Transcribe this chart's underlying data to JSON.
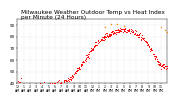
{
  "title": "Milwaukee Weather Outdoor Temp vs Heat Index\nper Minute (24 Hours)",
  "title_fontsize": 4.2,
  "title_color": "#000000",
  "title_color_orange": "#ff8800",
  "background_color": "#ffffff",
  "plot_bg_color": "#ffffff",
  "dot_color": "#ff0000",
  "dot_size": 0.5,
  "orange_dot_color": "#ff8800",
  "xlim": [
    0,
    1440
  ],
  "ylim": [
    40,
    95
  ],
  "ytick_values": [
    40,
    50,
    60,
    70,
    80,
    90
  ],
  "ytick_fontsize": 3.0,
  "xtick_fontsize": 2.3,
  "grid_color": "#999999",
  "grid_alpha": 0.6,
  "noise_scale": 1.2,
  "temp_hours": [
    0,
    1,
    2,
    3,
    4,
    5,
    6,
    7,
    8,
    9,
    10,
    11,
    12,
    13,
    14,
    15,
    16,
    17,
    18,
    19,
    20,
    21,
    22,
    23
  ],
  "temp_values": [
    43,
    42,
    42,
    41,
    41,
    41,
    41,
    41,
    43,
    47,
    54,
    62,
    70,
    76,
    80,
    83,
    85,
    86,
    85,
    83,
    79,
    72,
    63,
    55
  ],
  "heat_hours": [
    14,
    15,
    16,
    17
  ],
  "heat_values": [
    88,
    90,
    91,
    90
  ]
}
